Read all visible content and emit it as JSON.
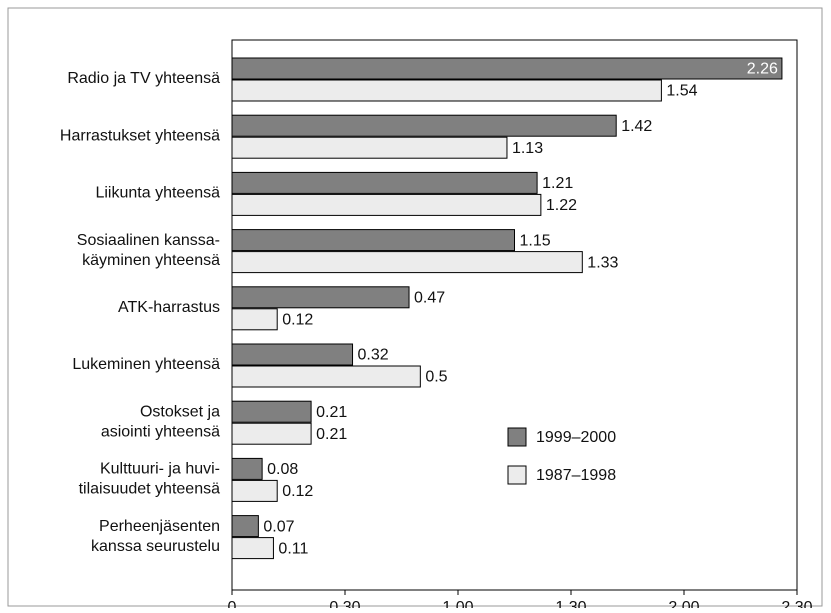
{
  "chart_data": {
    "type": "bar",
    "orientation": "horizontal",
    "categories": [
      [
        "Radio ja TV yhteensä"
      ],
      [
        "Harrastukset yhteensä"
      ],
      [
        "Liikunta yhteensä"
      ],
      [
        "Sosiaalinen kanssa-",
        "käyminen yhteensä"
      ],
      [
        "ATK-harrastus"
      ],
      [
        "Lukeminen yhteensä"
      ],
      [
        "Ostokset ja",
        "asiointi yhteensä"
      ],
      [
        "Kulttuuri- ja huvi-",
        "tilaisuudet yhteensä"
      ],
      [
        "Perheenjäsenten",
        "kanssa seurustelu"
      ]
    ],
    "series": [
      {
        "name": "1999–2000",
        "color": "#808080",
        "values": [
          2.26,
          1.42,
          1.21,
          1.15,
          0.47,
          0.32,
          0.21,
          0.08,
          0.07
        ]
      },
      {
        "name": "1987–1998",
        "color": "#ececec",
        "values": [
          1.54,
          1.13,
          1.22,
          1.33,
          0.12,
          0.5,
          0.21,
          0.12,
          0.11
        ]
      }
    ],
    "xlim": [
      0,
      2.3
    ],
    "xticks": [
      0,
      {
        "value": 0.3,
        "label": "0.30"
      },
      {
        "value": 1,
        "label": "1.00"
      },
      {
        "value": 1.3,
        "label": "1.30"
      },
      {
        "value": 2,
        "label": "2.00"
      },
      {
        "value": 2.3,
        "label": "2.30"
      }
    ]
  }
}
